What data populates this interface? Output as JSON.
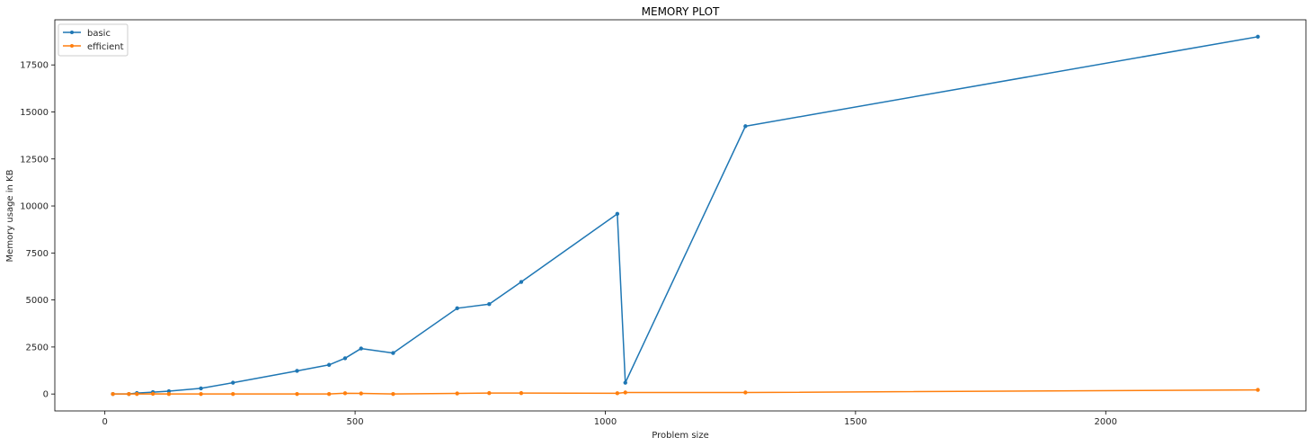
{
  "chart_data": {
    "type": "line",
    "title": "MEMORY PLOT",
    "xlabel": "Problem size",
    "ylabel": "Memory usage in KB",
    "xlim": [
      -100,
      2400
    ],
    "ylim": [
      -900,
      19900
    ],
    "x_ticks": [
      0,
      500,
      1000,
      1500,
      2000
    ],
    "y_ticks": [
      0,
      2500,
      5000,
      7500,
      10000,
      12500,
      15000,
      17500
    ],
    "grid": false,
    "legend_position": "top-left",
    "series": [
      {
        "name": "basic",
        "color": "#1f77b4",
        "x": [
          16,
          48,
          64,
          96,
          128,
          192,
          256,
          384,
          448,
          480,
          512,
          576,
          704,
          768,
          832,
          1024,
          1040,
          1280,
          2304
        ],
        "y": [
          0,
          0,
          50,
          100,
          150,
          300,
          600,
          1230,
          1550,
          1900,
          2420,
          2180,
          4560,
          4780,
          5960,
          9580,
          600,
          14240,
          19000
        ]
      },
      {
        "name": "efficient",
        "color": "#ff7f0e",
        "x": [
          16,
          48,
          64,
          96,
          128,
          192,
          256,
          384,
          448,
          480,
          512,
          576,
          704,
          768,
          832,
          1024,
          1040,
          1280,
          2304
        ],
        "y": [
          0,
          0,
          0,
          10,
          0,
          0,
          0,
          0,
          0,
          40,
          30,
          0,
          30,
          50,
          50,
          40,
          80,
          80,
          220
        ]
      }
    ]
  }
}
